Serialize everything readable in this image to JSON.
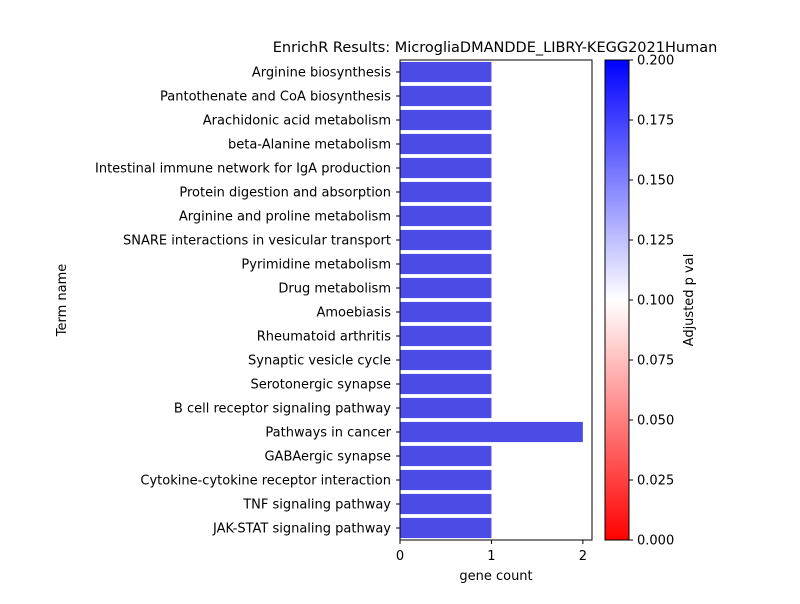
{
  "chart_data": {
    "type": "bar",
    "orientation": "horizontal",
    "title": "EnrichR Results: MicrogliaDMANDDE_LIBRY-KEGG2021Human",
    "xlabel": "gene count",
    "ylabel": "Term name",
    "xlim": [
      0,
      2.1
    ],
    "xticks": [
      "0",
      "1",
      "2"
    ],
    "categories": [
      "Arginine biosynthesis",
      "Pantothenate and CoA biosynthesis",
      "Arachidonic acid metabolism",
      "beta-Alanine metabolism",
      "Intestinal immune network for IgA production",
      "Protein digestion and absorption",
      "Arginine and proline metabolism",
      "SNARE interactions in vesicular transport",
      "Pyrimidine metabolism",
      "Drug metabolism",
      "Amoebiasis",
      "Rheumatoid arthritis",
      "Synaptic vesicle cycle",
      "Serotonergic synapse",
      "B cell receptor signaling pathway",
      "Pathways in cancer",
      "GABAergic synapse",
      "Cytokine-cytokine receptor interaction",
      "TNF signaling pathway",
      "JAK-STAT signaling pathway"
    ],
    "values": [
      1,
      1,
      1,
      1,
      1,
      1,
      1,
      1,
      1,
      1,
      1,
      1,
      1,
      1,
      1,
      2,
      1,
      1,
      1,
      1
    ],
    "bar_color": "#4b4be6",
    "colorbar": {
      "label": "Adjusted p val",
      "range": [
        0,
        0.2
      ],
      "ticks": [
        "0.000",
        "0.025",
        "0.050",
        "0.075",
        "0.100",
        "0.125",
        "0.150",
        "0.175",
        "0.200"
      ],
      "colormap": "bwr_r",
      "colors": [
        "#ff0000",
        "#ffffff",
        "#0000ff"
      ]
    },
    "grid": false,
    "legend": "none"
  }
}
